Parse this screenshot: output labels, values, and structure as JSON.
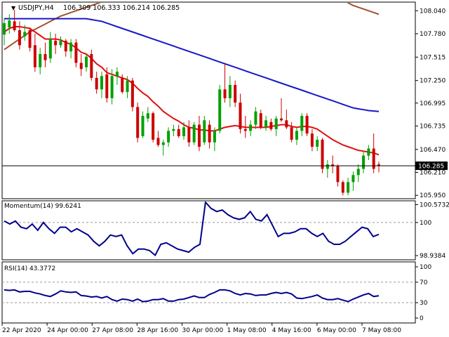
{
  "header": {
    "arrow": "▼",
    "symbol": "USDJPY,H4",
    "ohlc": "106.309 106.333 106.214 106.285"
  },
  "current_price": "106.285",
  "colors": {
    "bull": "#00a000",
    "bear": "#cc0000",
    "ma_fast": "#e01010",
    "ma_mid": "#1818c8",
    "ma_slow": "#a0522d",
    "oscillator": "#00008b"
  },
  "chart_data": [
    {
      "type": "candlestick",
      "title": "USDJPY,H4",
      "y_ticks": [
        "108.040",
        "107.780",
        "107.515",
        "107.250",
        "106.995",
        "106.735",
        "106.470",
        "106.210",
        "105.950"
      ],
      "ylim": [
        105.92,
        108.13
      ],
      "x_ticks": [
        "22 Apr 2020",
        "24 Apr 00:00",
        "27 Apr 08:00",
        "28 Apr 16:00",
        "30 Apr 00:00",
        "1 May 08:00",
        "4 May 16:00",
        "6 May 00:00",
        "7 May 08:00"
      ],
      "candles": [
        {
          "o": 107.77,
          "h": 107.95,
          "l": 107.65,
          "c": 107.9
        },
        {
          "o": 107.85,
          "h": 108.0,
          "l": 107.78,
          "c": 107.93
        },
        {
          "o": 107.92,
          "h": 108.05,
          "l": 107.8,
          "c": 107.82
        },
        {
          "o": 107.82,
          "h": 107.92,
          "l": 107.6,
          "c": 107.65
        },
        {
          "o": 107.75,
          "h": 107.88,
          "l": 107.7,
          "c": 107.8
        },
        {
          "o": 107.82,
          "h": 107.85,
          "l": 107.58,
          "c": 107.62
        },
        {
          "o": 107.65,
          "h": 107.78,
          "l": 107.35,
          "c": 107.4
        },
        {
          "o": 107.4,
          "h": 107.62,
          "l": 107.32,
          "c": 107.55
        },
        {
          "o": 107.55,
          "h": 107.68,
          "l": 107.4,
          "c": 107.48
        },
        {
          "o": 107.5,
          "h": 107.8,
          "l": 107.45,
          "c": 107.72
        },
        {
          "o": 107.7,
          "h": 107.78,
          "l": 107.55,
          "c": 107.65
        },
        {
          "o": 107.65,
          "h": 107.75,
          "l": 107.62,
          "c": 107.7
        },
        {
          "o": 107.7,
          "h": 107.72,
          "l": 107.52,
          "c": 107.58
        },
        {
          "o": 107.58,
          "h": 107.72,
          "l": 107.5,
          "c": 107.68
        },
        {
          "o": 107.68,
          "h": 107.72,
          "l": 107.4,
          "c": 107.45
        },
        {
          "o": 107.45,
          "h": 107.55,
          "l": 107.3,
          "c": 107.38
        },
        {
          "o": 107.4,
          "h": 107.55,
          "l": 107.35,
          "c": 107.52
        },
        {
          "o": 107.55,
          "h": 107.6,
          "l": 107.25,
          "c": 107.28
        },
        {
          "o": 107.28,
          "h": 107.35,
          "l": 107.1,
          "c": 107.15
        },
        {
          "o": 107.15,
          "h": 107.35,
          "l": 107.05,
          "c": 107.3
        },
        {
          "o": 107.32,
          "h": 107.4,
          "l": 107.0,
          "c": 107.05
        },
        {
          "o": 107.05,
          "h": 107.38,
          "l": 106.98,
          "c": 107.3
        },
        {
          "o": 107.3,
          "h": 107.4,
          "l": 107.2,
          "c": 107.35
        },
        {
          "o": 107.28,
          "h": 107.32,
          "l": 107.1,
          "c": 107.12
        },
        {
          "o": 107.12,
          "h": 107.3,
          "l": 107.05,
          "c": 107.25
        },
        {
          "o": 107.25,
          "h": 107.28,
          "l": 106.9,
          "c": 106.95
        },
        {
          "o": 106.95,
          "h": 107.0,
          "l": 106.55,
          "c": 106.6
        },
        {
          "o": 106.62,
          "h": 106.9,
          "l": 106.6,
          "c": 106.85
        },
        {
          "o": 106.82,
          "h": 106.95,
          "l": 106.78,
          "c": 106.88
        },
        {
          "o": 106.88,
          "h": 106.9,
          "l": 106.55,
          "c": 106.58
        },
        {
          "o": 106.6,
          "h": 106.68,
          "l": 106.5,
          "c": 106.52
        },
        {
          "o": 106.52,
          "h": 106.58,
          "l": 106.4,
          "c": 106.55
        },
        {
          "o": 106.55,
          "h": 106.72,
          "l": 106.5,
          "c": 106.68
        },
        {
          "o": 106.68,
          "h": 106.75,
          "l": 106.62,
          "c": 106.7
        },
        {
          "o": 106.7,
          "h": 106.75,
          "l": 106.6,
          "c": 106.62
        },
        {
          "o": 106.62,
          "h": 106.78,
          "l": 106.58,
          "c": 106.72
        },
        {
          "o": 106.72,
          "h": 106.8,
          "l": 106.5,
          "c": 106.55
        },
        {
          "o": 106.55,
          "h": 106.78,
          "l": 106.52,
          "c": 106.75
        },
        {
          "o": 106.75,
          "h": 106.85,
          "l": 106.45,
          "c": 106.5
        },
        {
          "o": 106.55,
          "h": 106.85,
          "l": 106.52,
          "c": 106.8
        },
        {
          "o": 106.75,
          "h": 106.8,
          "l": 106.48,
          "c": 106.55
        },
        {
          "o": 106.55,
          "h": 106.72,
          "l": 106.45,
          "c": 106.68
        },
        {
          "o": 106.68,
          "h": 107.2,
          "l": 106.65,
          "c": 107.15
        },
        {
          "o": 107.15,
          "h": 107.45,
          "l": 107.0,
          "c": 107.05
        },
        {
          "o": 107.05,
          "h": 107.3,
          "l": 106.95,
          "c": 107.2
        },
        {
          "o": 107.2,
          "h": 107.25,
          "l": 106.95,
          "c": 107.0
        },
        {
          "o": 107.0,
          "h": 107.1,
          "l": 106.65,
          "c": 106.7
        },
        {
          "o": 106.7,
          "h": 106.85,
          "l": 106.6,
          "c": 106.68
        },
        {
          "o": 106.68,
          "h": 106.8,
          "l": 106.62,
          "c": 106.75
        },
        {
          "o": 106.75,
          "h": 106.95,
          "l": 106.7,
          "c": 106.9
        },
        {
          "o": 106.88,
          "h": 106.92,
          "l": 106.7,
          "c": 106.72
        },
        {
          "o": 106.72,
          "h": 106.85,
          "l": 106.68,
          "c": 106.8
        },
        {
          "o": 106.78,
          "h": 106.82,
          "l": 106.68,
          "c": 106.7
        },
        {
          "o": 106.7,
          "h": 106.85,
          "l": 106.62,
          "c": 106.82
        },
        {
          "o": 106.82,
          "h": 107.05,
          "l": 106.78,
          "c": 106.8
        },
        {
          "o": 106.8,
          "h": 106.92,
          "l": 106.7,
          "c": 106.72
        },
        {
          "o": 106.72,
          "h": 106.78,
          "l": 106.55,
          "c": 106.58
        },
        {
          "o": 106.58,
          "h": 106.72,
          "l": 106.52,
          "c": 106.68
        },
        {
          "o": 106.68,
          "h": 106.88,
          "l": 106.62,
          "c": 106.85
        },
        {
          "o": 106.85,
          "h": 106.88,
          "l": 106.62,
          "c": 106.65
        },
        {
          "o": 106.65,
          "h": 106.7,
          "l": 106.45,
          "c": 106.5
        },
        {
          "o": 106.5,
          "h": 106.62,
          "l": 106.45,
          "c": 106.58
        },
        {
          "o": 106.58,
          "h": 106.6,
          "l": 106.2,
          "c": 106.25
        },
        {
          "o": 106.25,
          "h": 106.35,
          "l": 106.15,
          "c": 106.3
        },
        {
          "o": 106.3,
          "h": 106.4,
          "l": 106.2,
          "c": 106.28
        },
        {
          "o": 106.28,
          "h": 106.3,
          "l": 106.05,
          "c": 106.1
        },
        {
          "o": 106.1,
          "h": 106.12,
          "l": 105.95,
          "c": 105.98
        },
        {
          "o": 105.98,
          "h": 106.15,
          "l": 105.95,
          "c": 106.1
        },
        {
          "o": 106.1,
          "h": 106.22,
          "l": 106.0,
          "c": 106.18
        },
        {
          "o": 106.18,
          "h": 106.3,
          "l": 106.1,
          "c": 106.25
        },
        {
          "o": 106.25,
          "h": 106.45,
          "l": 106.2,
          "c": 106.4
        },
        {
          "o": 106.4,
          "h": 106.52,
          "l": 106.35,
          "c": 106.48
        },
        {
          "o": 106.48,
          "h": 106.65,
          "l": 106.2,
          "c": 106.25
        },
        {
          "o": 106.3,
          "h": 106.33,
          "l": 106.21,
          "c": 106.285
        }
      ],
      "ma_fast": [
        107.8,
        107.84,
        107.86,
        107.86,
        107.85,
        107.84,
        107.8,
        107.76,
        107.72,
        107.72,
        107.72,
        107.71,
        107.68,
        107.66,
        107.62,
        107.57,
        107.55,
        107.5,
        107.44,
        107.4,
        107.34,
        107.32,
        107.3,
        107.28,
        107.26,
        107.22,
        107.16,
        107.11,
        107.07,
        107.01,
        106.96,
        106.9,
        106.86,
        106.82,
        106.79,
        106.75,
        106.72,
        106.71,
        106.69,
        106.69,
        106.68,
        106.68,
        106.7,
        106.72,
        106.73,
        106.74,
        106.73,
        106.72,
        106.72,
        106.72,
        106.72,
        106.72,
        106.73,
        106.74,
        106.75,
        106.75,
        106.73,
        106.72,
        106.73,
        106.73,
        106.72,
        106.7,
        106.66,
        106.62,
        106.58,
        106.55,
        106.52,
        106.5,
        106.48,
        106.46,
        106.45,
        106.44,
        106.43,
        106.41
      ],
      "ma_mid": [
        107.95,
        107.95,
        107.95,
        107.95,
        107.95,
        107.95,
        107.95,
        107.95,
        107.95,
        107.95,
        107.95,
        107.95,
        107.95,
        107.95,
        107.95,
        107.95,
        107.95,
        107.94,
        107.93,
        107.92,
        107.9,
        107.88,
        107.86,
        107.84,
        107.82,
        107.8,
        107.78,
        107.76,
        107.74,
        107.72,
        107.7,
        107.68,
        107.66,
        107.64,
        107.62,
        107.6,
        107.58,
        107.56,
        107.54,
        107.52,
        107.5,
        107.48,
        107.46,
        107.44,
        107.42,
        107.4,
        107.38,
        107.36,
        107.34,
        107.32,
        107.3,
        107.28,
        107.26,
        107.24,
        107.22,
        107.2,
        107.18,
        107.16,
        107.14,
        107.12,
        107.1,
        107.08,
        107.06,
        107.04,
        107.02,
        107.0,
        106.98,
        106.96,
        106.94,
        106.93,
        106.92,
        106.91,
        106.905,
        106.9
      ],
      "ma_slow": [
        107.6,
        107.64,
        107.68,
        107.72,
        107.76,
        107.8,
        107.83,
        107.86,
        107.89,
        107.92,
        107.95,
        107.98,
        108.0,
        108.02,
        108.04,
        108.06,
        108.08,
        108.1,
        108.12,
        108.14,
        108.16,
        108.18,
        108.2,
        108.22,
        108.24,
        108.26,
        108.28,
        108.3,
        108.32,
        108.34,
        108.35,
        108.36,
        108.37,
        108.38,
        108.39,
        108.4,
        108.41,
        108.42,
        108.43,
        108.44,
        108.44,
        108.44,
        108.44,
        108.44,
        108.44,
        108.44,
        108.44,
        108.44,
        108.44,
        108.44,
        108.44,
        108.44,
        108.44,
        108.44,
        108.44,
        108.44,
        108.44,
        108.44,
        108.44,
        108.44,
        108.4,
        108.36,
        108.32,
        108.28,
        108.24,
        108.2,
        108.16,
        108.13,
        108.1,
        108.08,
        108.06,
        108.04,
        108.02,
        108.0
      ]
    },
    {
      "type": "line",
      "title": "Momentum(14) 99.6241",
      "y_ticks": [
        "100.5732",
        "100",
        "98.9384"
      ],
      "ylim": [
        98.85,
        100.65
      ],
      "reference_line": 100,
      "values": [
        100.05,
        99.95,
        100.05,
        99.85,
        99.8,
        99.95,
        99.75,
        100.0,
        99.8,
        99.65,
        99.85,
        99.85,
        99.7,
        99.8,
        99.7,
        99.6,
        99.4,
        99.25,
        99.4,
        99.6,
        99.55,
        99.6,
        99.25,
        99.0,
        99.15,
        99.15,
        99.1,
        98.95,
        99.3,
        99.35,
        99.25,
        99.15,
        99.1,
        99.05,
        99.2,
        99.3,
        100.65,
        100.45,
        100.35,
        100.4,
        100.25,
        100.15,
        100.1,
        100.15,
        100.35,
        100.1,
        100.05,
        100.25,
        99.9,
        99.55,
        99.65,
        99.65,
        99.7,
        99.8,
        99.8,
        99.65,
        99.55,
        99.65,
        99.4,
        99.3,
        99.3,
        99.4,
        99.55,
        99.7,
        99.85,
        99.8,
        99.55,
        99.62
      ]
    },
    {
      "type": "line",
      "title": "RSI(14) 43.3772",
      "y_ticks": [
        "100",
        "70",
        "30",
        "0"
      ],
      "ylim": [
        0,
        100
      ],
      "reference_lines": [
        70,
        30
      ],
      "values": [
        55,
        54,
        55,
        51,
        52,
        52,
        49,
        47,
        44,
        42,
        47,
        53,
        51,
        50,
        51,
        44,
        43,
        41,
        42,
        39,
        42,
        36,
        33,
        37,
        36,
        33,
        37,
        32,
        33,
        36,
        36,
        38,
        33,
        33,
        36,
        37,
        40,
        43,
        40,
        40,
        46,
        50,
        55,
        55,
        53,
        48,
        45,
        48,
        47,
        44,
        45,
        45,
        48,
        50,
        48,
        50,
        47,
        39,
        38,
        40,
        42,
        45,
        39,
        36,
        36,
        38,
        35,
        32,
        37,
        41,
        45,
        48,
        42,
        43.3772
      ]
    }
  ]
}
